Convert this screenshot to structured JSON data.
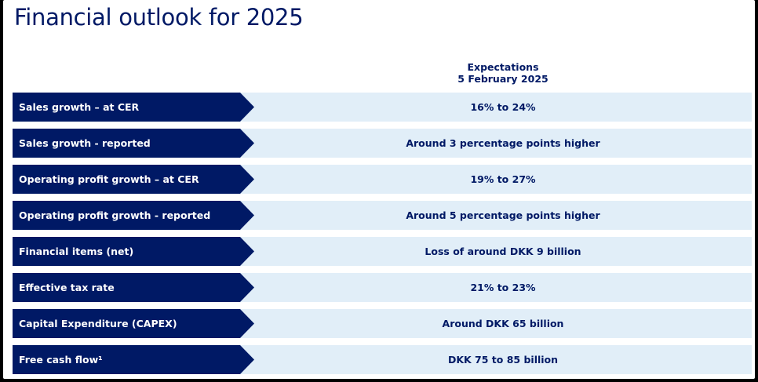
{
  "title": "Financial outlook for 2025",
  "column_header": {
    "line1": "Expectations",
    "line2": "5 February 2025"
  },
  "colors": {
    "navy": "#001965",
    "row_bg": "#e1eef8",
    "white": "#ffffff"
  },
  "rows": [
    {
      "label": "Sales growth – at CER",
      "value": "16% to 24%"
    },
    {
      "label": "Sales growth - reported",
      "value": "Around 3 percentage points higher"
    },
    {
      "label": "Operating profit growth – at CER",
      "value": "19% to 27%"
    },
    {
      "label": "Operating profit growth - reported",
      "value": "Around 5 percentage points higher"
    },
    {
      "label": "Financial items (net)",
      "value": "Loss of around DKK 9 billion"
    },
    {
      "label": "Effective tax rate",
      "value": "21% to 23%"
    },
    {
      "label": "Capital Expenditure (CAPEX)",
      "value": "Around DKK 65 billion"
    },
    {
      "label": "Free cash flow¹",
      "value": "DKK 75 to 85 billion"
    }
  ]
}
